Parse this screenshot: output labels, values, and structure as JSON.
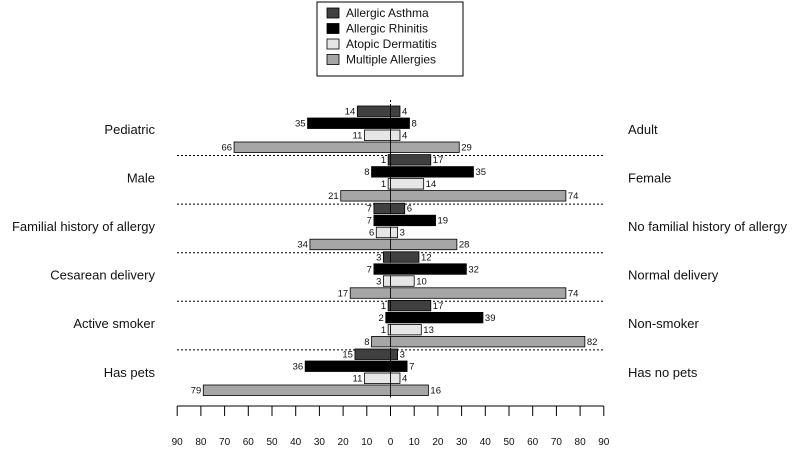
{
  "chart_data": {
    "type": "bar",
    "orientation": "horizontal-diverging",
    "legend_position": "top-center",
    "grid": false,
    "xlim": [
      -90,
      90
    ],
    "x_ticks": [
      90,
      80,
      70,
      60,
      50,
      40,
      30,
      20,
      10,
      0,
      10,
      20,
      30,
      40,
      50,
      60,
      70,
      80,
      90
    ],
    "series": [
      {
        "name": "Allergic Asthma",
        "color": "#404040"
      },
      {
        "name": "Allergic Rhinitis",
        "color": "#000000"
      },
      {
        "name": "Atopic Dermatitis",
        "color": "#e6e6e6"
      },
      {
        "name": "Multiple Allergies",
        "color": "#a6a6a6"
      }
    ],
    "groups": [
      {
        "left_label": "Pediatric",
        "right_label": "Adult",
        "left": [
          14,
          35,
          11,
          66
        ],
        "right": [
          4,
          8,
          4,
          29
        ]
      },
      {
        "left_label": "Male",
        "right_label": "Female",
        "left": [
          1,
          8,
          1,
          21
        ],
        "right": [
          17,
          35,
          14,
          74
        ]
      },
      {
        "left_label": "Familial history of allergy",
        "right_label": "No familial history of allergy",
        "left": [
          7,
          7,
          6,
          34
        ],
        "right": [
          6,
          19,
          3,
          28
        ]
      },
      {
        "left_label": "Cesarean delivery",
        "right_label": "Normal delivery",
        "left": [
          3,
          7,
          3,
          17
        ],
        "right": [
          12,
          32,
          10,
          74
        ]
      },
      {
        "left_label": "Active smoker",
        "right_label": "Non-smoker",
        "left": [
          1,
          2,
          1,
          8
        ],
        "right": [
          17,
          39,
          13,
          82
        ]
      },
      {
        "left_label": "Has pets",
        "right_label": "Has no pets",
        "left": [
          15,
          36,
          11,
          79
        ],
        "right": [
          3,
          7,
          4,
          16
        ]
      }
    ]
  }
}
